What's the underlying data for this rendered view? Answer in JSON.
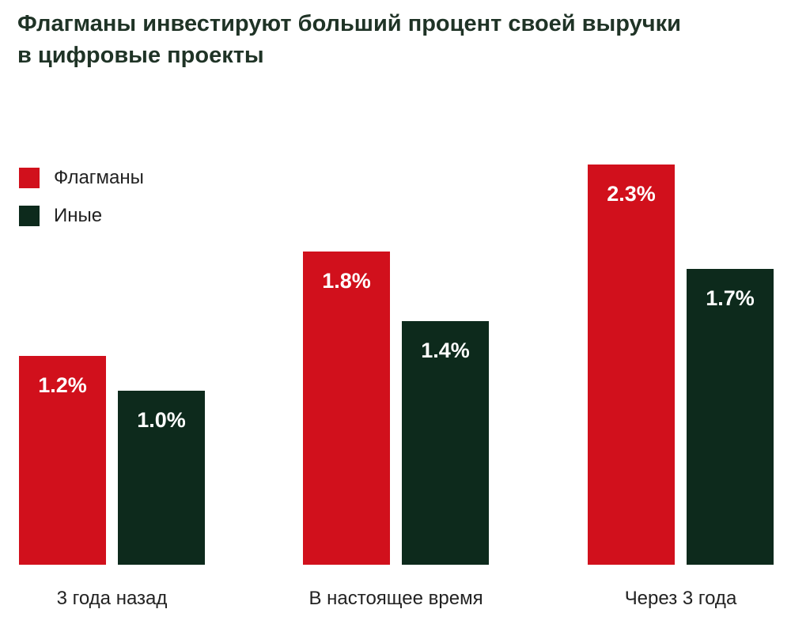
{
  "title_lines": [
    "Флагманы инвестируют больший процент своей выручки",
    "в цифровые проекты"
  ],
  "colors": {
    "Флагманы": "#d1101c",
    "Иные": "#0d2a1c"
  },
  "chart_data": {
    "type": "bar",
    "title": "Флагманы инвестируют больший процент своей выручки в цифровые проекты",
    "categories": [
      "3 года назад",
      "В настоящее время",
      "Через 3 года"
    ],
    "series": [
      {
        "name": "Флагманы",
        "values": [
          1.2,
          1.8,
          2.3
        ],
        "labels": [
          "1.2%",
          "1.8%",
          "2.3%"
        ]
      },
      {
        "name": "Иные",
        "values": [
          1.0,
          1.4,
          1.7
        ],
        "labels": [
          "1.0%",
          "1.4%",
          "1.7%"
        ]
      }
    ],
    "legend": "top-left",
    "grid": false,
    "ylim": [
      0,
      2.3
    ]
  }
}
